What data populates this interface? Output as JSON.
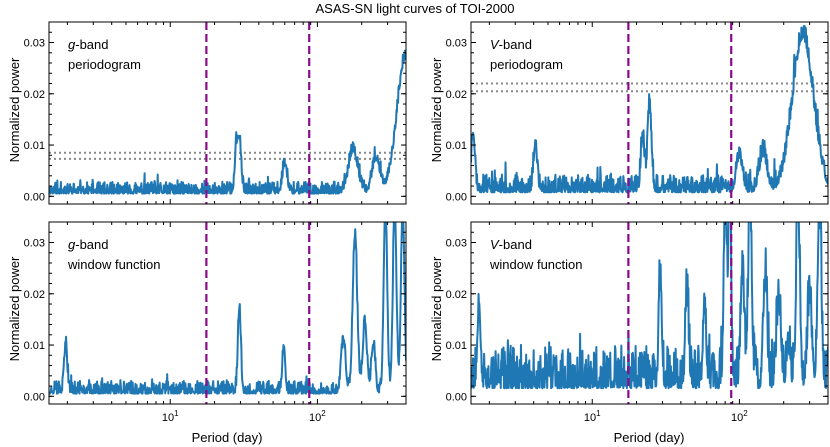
{
  "chart_data": {
    "type": "line",
    "title": "ASAS-SN light curves of TOI-2000",
    "xlabel": "Period (day)",
    "ylabel": "Normalized power",
    "xscale": "log",
    "xlim": [
      1.5,
      400
    ],
    "ylim": [
      -0.0015,
      0.034
    ],
    "yticks": [
      "0.00",
      "0.01",
      "0.02",
      "0.03"
    ],
    "xticks": [
      {
        "value": 10,
        "base": "10",
        "exp": "1"
      },
      {
        "value": 100,
        "base": "10",
        "exp": "2"
      }
    ],
    "vlines": {
      "color": "#8b0a8b",
      "periods": [
        17.6,
        88.0
      ]
    },
    "colors": {
      "series": "#1f77b4",
      "fap": "#888888",
      "vline": "#8b0a8b"
    },
    "panels": [
      {
        "id": "g-periodogram",
        "label_band": "g",
        "label_rest": "-band",
        "label_line2": "periodogram",
        "fap_levels": [
          0.0085,
          0.0073
        ],
        "noise": {
          "base": 0.0015,
          "amp": 0.0023,
          "seed": 11
        },
        "features": [
          {
            "period": 29.5,
            "power": 0.0105,
            "width": 0.012
          },
          {
            "period": 28.0,
            "power": 0.0072,
            "width": 0.01
          },
          {
            "period": 60.0,
            "power": 0.0055,
            "width": 0.015
          },
          {
            "period": 175,
            "power": 0.0082,
            "width": 0.03
          },
          {
            "period": 250,
            "power": 0.0065,
            "width": 0.025
          },
          {
            "period": 400,
            "power": 0.0265,
            "width": 0.06
          }
        ]
      },
      {
        "id": "v-periodogram",
        "label_band": "V",
        "label_rest": "-band",
        "label_line2": "periodogram",
        "fap_levels": [
          0.022,
          0.0205
        ],
        "noise": {
          "base": 0.0022,
          "amp": 0.0035,
          "seed": 23
        },
        "features": [
          {
            "period": 1.55,
            "power": 0.0115,
            "width": 0.012
          },
          {
            "period": 4.1,
            "power": 0.0092,
            "width": 0.012
          },
          {
            "period": 24.5,
            "power": 0.0167,
            "width": 0.013
          },
          {
            "period": 22.0,
            "power": 0.0105,
            "width": 0.012
          },
          {
            "period": 100,
            "power": 0.0068,
            "width": 0.02
          },
          {
            "period": 145,
            "power": 0.0072,
            "width": 0.025
          },
          {
            "period": 270,
            "power": 0.03,
            "width": 0.07
          }
        ]
      },
      {
        "id": "g-window",
        "label_band": "g",
        "label_rest": "-band",
        "label_line2": "window function",
        "fap_levels": [],
        "noise": {
          "base": 0.0015,
          "amp": 0.0025,
          "seed": 37
        },
        "features": [
          {
            "period": 1.95,
            "power": 0.0095,
            "width": 0.01
          },
          {
            "period": 29.5,
            "power": 0.0165,
            "width": 0.01
          },
          {
            "period": 59.0,
            "power": 0.0085,
            "width": 0.01
          },
          {
            "period": 150,
            "power": 0.01,
            "width": 0.015
          },
          {
            "period": 180,
            "power": 0.0305,
            "width": 0.015
          },
          {
            "period": 210,
            "power": 0.0128,
            "width": 0.015
          },
          {
            "period": 240,
            "power": 0.0095,
            "width": 0.012
          },
          {
            "period": 290,
            "power": 0.036,
            "width": 0.012
          },
          {
            "period": 335,
            "power": 0.036,
            "width": 0.012
          },
          {
            "period": 380,
            "power": 0.036,
            "width": 0.012
          }
        ]
      },
      {
        "id": "v-window",
        "label_band": "V",
        "label_rest": "-band",
        "label_line2": "window function",
        "fap_levels": [],
        "noise": {
          "base": 0.0045,
          "amp": 0.0085,
          "seed": 53
        },
        "features": [
          {
            "period": 1.7,
            "power": 0.0165,
            "width": 0.01
          },
          {
            "period": 29.0,
            "power": 0.0215,
            "width": 0.01
          },
          {
            "period": 44.0,
            "power": 0.0195,
            "width": 0.01
          },
          {
            "period": 58.0,
            "power": 0.017,
            "width": 0.01
          },
          {
            "period": 80.0,
            "power": 0.036,
            "width": 0.01
          },
          {
            "period": 86.0,
            "power": 0.036,
            "width": 0.01
          },
          {
            "period": 105,
            "power": 0.0215,
            "width": 0.012
          },
          {
            "period": 118,
            "power": 0.036,
            "width": 0.012
          },
          {
            "period": 150,
            "power": 0.021,
            "width": 0.012
          },
          {
            "period": 185,
            "power": 0.0155,
            "width": 0.015
          },
          {
            "period": 215,
            "power": 0.006,
            "width": 0.012
          },
          {
            "period": 250,
            "power": 0.036,
            "width": 0.012
          },
          {
            "period": 300,
            "power": 0.0155,
            "width": 0.015
          },
          {
            "period": 350,
            "power": 0.036,
            "width": 0.012
          }
        ]
      }
    ]
  }
}
